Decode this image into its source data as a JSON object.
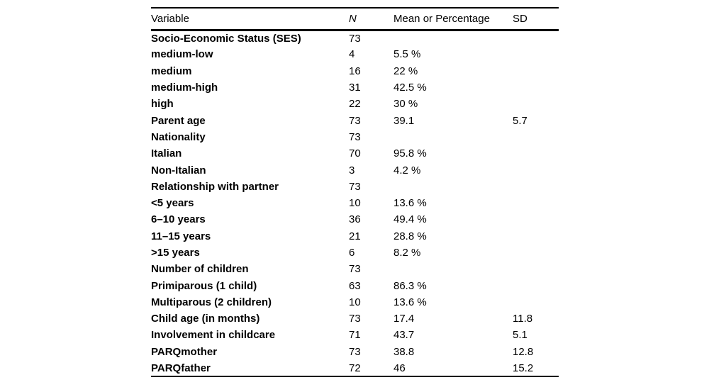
{
  "table": {
    "columns": [
      "Variable",
      "N",
      "Mean or Percentage",
      "SD"
    ],
    "rows": [
      {
        "variable": "Socio-Economic Status (SES)",
        "n": "73",
        "mean": "",
        "sd": ""
      },
      {
        "variable": "medium-low",
        "n": "4",
        "mean": "5.5 %",
        "sd": ""
      },
      {
        "variable": "medium",
        "n": "16",
        "mean": "22 %",
        "sd": ""
      },
      {
        "variable": "medium-high",
        "n": "31",
        "mean": "42.5 %",
        "sd": ""
      },
      {
        "variable": "high",
        "n": "22",
        "mean": "30 %",
        "sd": ""
      },
      {
        "variable": "Parent age",
        "n": "73",
        "mean": "39.1",
        "sd": "5.7"
      },
      {
        "variable": "Nationality",
        "n": "73",
        "mean": "",
        "sd": ""
      },
      {
        "variable": "Italian",
        "n": "70",
        "mean": "95.8 %",
        "sd": ""
      },
      {
        "variable": "Non-Italian",
        "n": "3",
        "mean": "4.2 %",
        "sd": ""
      },
      {
        "variable": "Relationship with partner",
        "n": "73",
        "mean": "",
        "sd": ""
      },
      {
        "variable": "<5 years",
        "n": "10",
        "mean": "13.6 %",
        "sd": ""
      },
      {
        "variable": "6–10 years",
        "n": "36",
        "mean": "49.4 %",
        "sd": ""
      },
      {
        "variable": "11–15 years",
        "n": "21",
        "mean": "28.8 %",
        "sd": ""
      },
      {
        "variable": ">15 years",
        "n": "6",
        "mean": "8.2 %",
        "sd": ""
      },
      {
        "variable": "Number of children",
        "n": "73",
        "mean": "",
        "sd": ""
      },
      {
        "variable": "Primiparous (1 child)",
        "n": "63",
        "mean": "86.3 %",
        "sd": ""
      },
      {
        "variable": "Multiparous (2 children)",
        "n": "10",
        "mean": "13.6 %",
        "sd": ""
      },
      {
        "variable": "Child age (in months)",
        "n": "73",
        "mean": "17.4",
        "sd": "11.8"
      },
      {
        "variable": "Involvement in childcare",
        "n": "71",
        "mean": "43.7",
        "sd": "5.1"
      },
      {
        "variable": "PARQmother",
        "n": "73",
        "mean": "38.8",
        "sd": "12.8"
      },
      {
        "variable": "PARQfather",
        "n": "72",
        "mean": "46",
        "sd": "15.2"
      }
    ]
  }
}
